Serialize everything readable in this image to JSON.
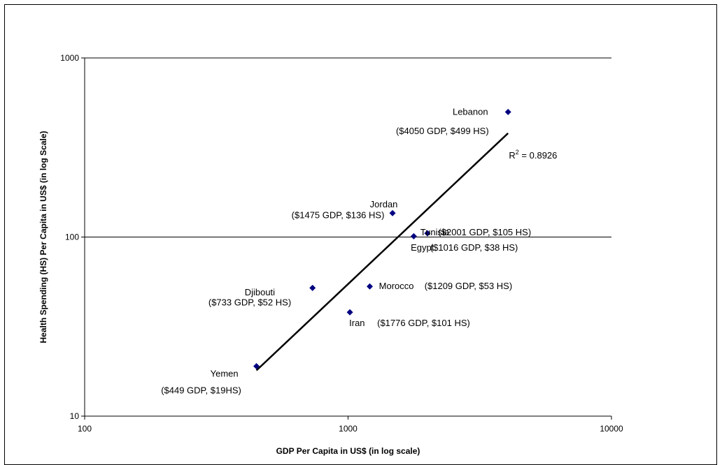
{
  "chart_data": {
    "type": "scatter",
    "title": "",
    "xlabel": "GDP Per Capita in US$  (in log scale)",
    "ylabel": "Health Spending (HS) Per Capita in US$ (in log Scale)",
    "x_scale": "log",
    "y_scale": "log",
    "xlim": [
      100,
      10000
    ],
    "ylim": [
      10,
      1000
    ],
    "x_ticks": [
      "100",
      "1000",
      "10000"
    ],
    "y_ticks": [
      "10",
      "100",
      "1000"
    ],
    "grid": "horizontal major gridlines",
    "legend": "none",
    "marker_color": "#000080",
    "points": [
      {
        "x": 449,
        "y": 19
      },
      {
        "x": 733,
        "y": 52
      },
      {
        "x": 1016,
        "y": 38
      },
      {
        "x": 1209,
        "y": 53
      },
      {
        "x": 1475,
        "y": 136
      },
      {
        "x": 1776,
        "y": 101
      },
      {
        "x": 2001,
        "y": 105
      },
      {
        "x": 4050,
        "y": 499
      }
    ],
    "trendline": {
      "type": "power",
      "x_start": 449,
      "y_start": 18,
      "x_end": 4050,
      "y_end": 380,
      "r2_label": "R",
      "r2_sup": "2",
      "r2_value": " = 0.8926"
    },
    "annotations": [
      {
        "text": "Lebanon",
        "x": 3400,
        "y": 499,
        "anchor": "end"
      },
      {
        "text": "($4050 GDP, $499 HS)",
        "x": 1520,
        "y": 390,
        "anchor": "start"
      },
      {
        "text": "Jordan",
        "x": 1210,
        "y": 152,
        "anchor": "start"
      },
      {
        "text": "($1475 GDP, $136 HS)",
        "x": 610,
        "y": 132,
        "anchor": "start"
      },
      {
        "text": "Tunisia",
        "x": 1880,
        "y": 106,
        "anchor": "start"
      },
      {
        "text": "($2001 GDP, $105 HS)",
        "x": 2200,
        "y": 106,
        "anchor": "start"
      },
      {
        "text": "Egypt",
        "x": 1730,
        "y": 87,
        "anchor": "start"
      },
      {
        "text": "($1016 GDP, $38 HS)",
        "x": 2050,
        "y": 87,
        "anchor": "start"
      },
      {
        "text": "Djibouti",
        "x": 405,
        "y": 49,
        "anchor": "start"
      },
      {
        "text": "($733 GDP, $52 HS)",
        "x": 295,
        "y": 43,
        "anchor": "start"
      },
      {
        "text": "Morocco",
        "x": 1310,
        "y": 53,
        "anchor": "start"
      },
      {
        "text": "($1209 GDP, $53 HS)",
        "x": 1950,
        "y": 53,
        "anchor": "start"
      },
      {
        "text": "Iran",
        "x": 1010,
        "y": 33,
        "anchor": "start"
      },
      {
        "text": "($1776 GDP, $101 HS)",
        "x": 1290,
        "y": 33,
        "anchor": "start"
      },
      {
        "text": "Yemen",
        "x": 300,
        "y": 17.2,
        "anchor": "start"
      },
      {
        "text": "($449 GDP, $19HS)",
        "x": 195,
        "y": 13.9,
        "anchor": "start"
      }
    ]
  }
}
